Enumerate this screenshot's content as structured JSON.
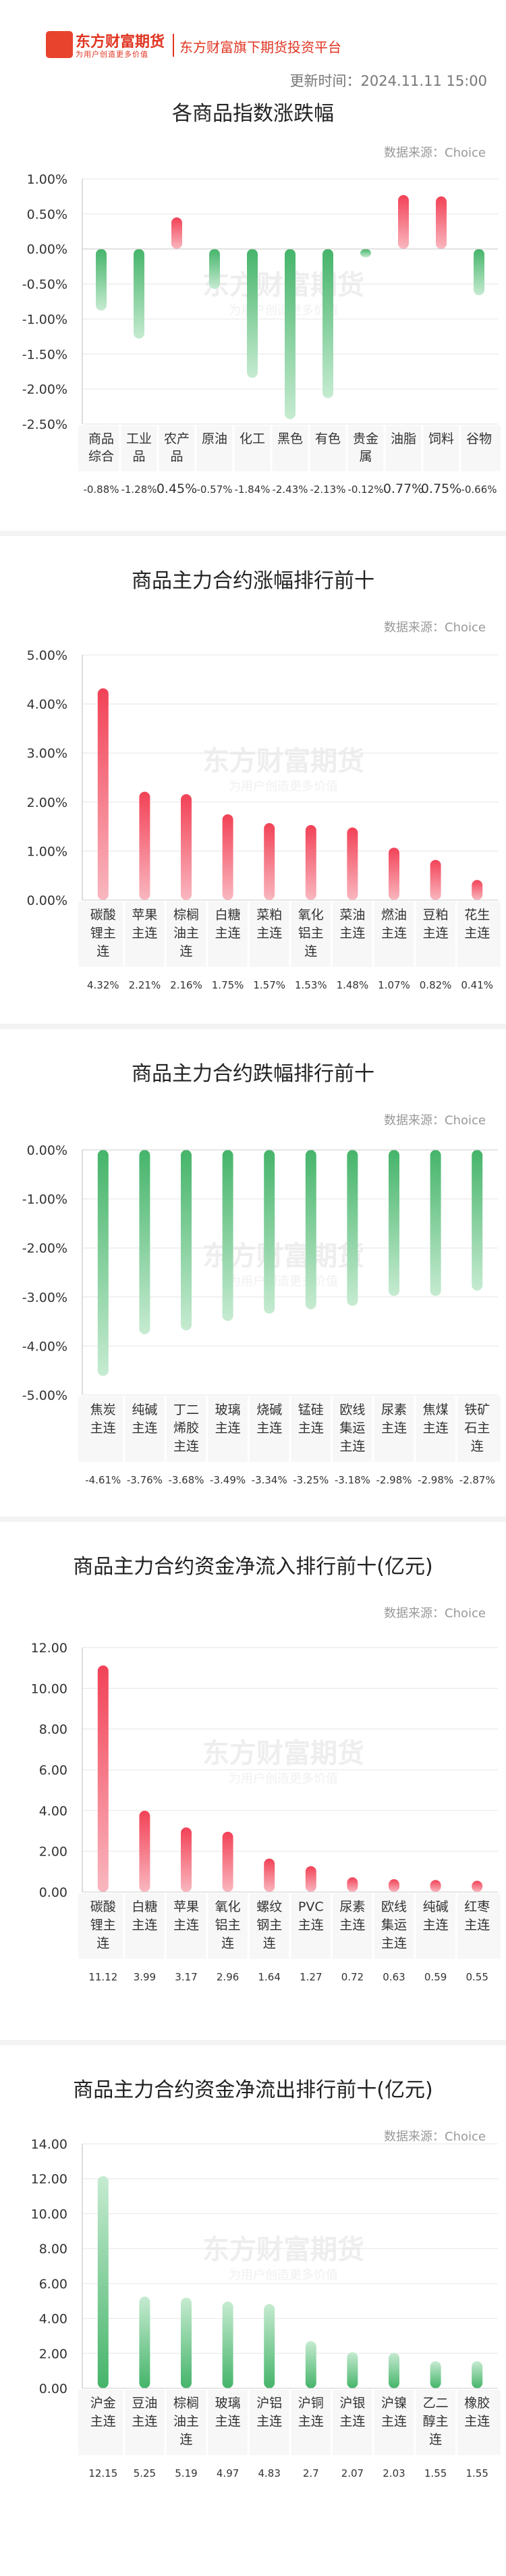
{
  "header": {
    "brand_name": "东方财富期货",
    "brand_slogan": "为用户创造更多价值",
    "platform_name": "东方财富旗下期货投资平台",
    "update_time": "更新时间：2024.11.11 15:00"
  },
  "watermark": {
    "main": "东方财富期货",
    "sub": "为用户创造更多价值"
  },
  "colors": {
    "up": "#f0455a",
    "down": "#4fb873",
    "zero_line": "#bbbbbb",
    "grid": "#e6e6e6"
  },
  "chart_data": [
    {
      "type": "bar",
      "title": "各商品指数涨跌幅",
      "source": "数据来源：Choice",
      "categories": [
        "商品综合",
        "工业品",
        "农产品",
        "原油",
        "化工",
        "黑色",
        "有色",
        "贵金属",
        "油脂",
        "饲料",
        "谷物"
      ],
      "values": [
        -0.88,
        -1.28,
        0.45,
        -0.57,
        -1.84,
        -2.43,
        -2.13,
        -0.12,
        0.77,
        0.75,
        -0.66
      ],
      "value_labels": [
        "-0.88%",
        "-1.28%",
        "0.45%",
        "-0.57%",
        "-1.84%",
        "-2.43%",
        "-2.13%",
        "-0.12%",
        "0.77%",
        "0.75%",
        "-0.66%"
      ],
      "yticks": [
        "1.00%",
        "0.50%",
        "0.00%",
        "-0.50%",
        "-1.00%",
        "-1.50%",
        "-2.00%",
        "-2.50%"
      ],
      "ylim": [
        -2.5,
        1.0
      ]
    },
    {
      "type": "bar",
      "title": "商品主力合约涨幅排行前十",
      "source": "数据来源：Choice",
      "categories": [
        "碳酸锂主连",
        "苹果主连",
        "棕榈油主连",
        "白糖主连",
        "菜粕主连",
        "氧化铝主连",
        "菜油主连",
        "燃油主连",
        "豆粕主连",
        "花生主连"
      ],
      "values": [
        4.32,
        2.21,
        2.16,
        1.75,
        1.57,
        1.53,
        1.48,
        1.07,
        0.82,
        0.41
      ],
      "value_labels": [
        "4.32%",
        "2.21%",
        "2.16%",
        "1.75%",
        "1.57%",
        "1.53%",
        "1.48%",
        "1.07%",
        "0.82%",
        "0.41%"
      ],
      "yticks": [
        "5.00%",
        "4.00%",
        "3.00%",
        "2.00%",
        "1.00%",
        "0.00%"
      ],
      "ylim": [
        0,
        5
      ]
    },
    {
      "type": "bar",
      "title": "商品主力合约跌幅排行前十",
      "source": "数据来源：Choice",
      "categories": [
        "焦炭主连",
        "纯碱主连",
        "丁二烯胶主连",
        "玻璃主连",
        "烧碱主连",
        "锰硅主连",
        "欧线集运主连",
        "尿素主连",
        "焦煤主连",
        "铁矿石主连"
      ],
      "values": [
        -4.61,
        -3.76,
        -3.68,
        -3.49,
        -3.34,
        -3.25,
        -3.18,
        -2.98,
        -2.98,
        -2.87
      ],
      "value_labels": [
        "-4.61%",
        "-3.76%",
        "-3.68%",
        "-3.49%",
        "-3.34%",
        "-3.25%",
        "-3.18%",
        "-2.98%",
        "-2.98%",
        "-2.87%"
      ],
      "yticks": [
        "0.00%",
        "-1.00%",
        "-2.00%",
        "-3.00%",
        "-4.00%",
        "-5.00%"
      ],
      "ylim": [
        -5,
        0
      ]
    },
    {
      "type": "bar",
      "title": "商品主力合约资金净流入排行前十(亿元)",
      "source": "数据来源：Choice",
      "categories": [
        "碳酸锂主连",
        "白糖主连",
        "苹果主连",
        "氧化铝主连",
        "螺纹钢主连",
        "PVC主连",
        "尿素主连",
        "欧线集运主连",
        "纯碱主连",
        "红枣主连"
      ],
      "values": [
        11.12,
        3.99,
        3.17,
        2.96,
        1.64,
        1.27,
        0.72,
        0.63,
        0.59,
        0.55
      ],
      "value_labels": [
        "11.12",
        "3.99",
        "3.17",
        "2.96",
        "1.64",
        "1.27",
        "0.72",
        "0.63",
        "0.59",
        "0.55"
      ],
      "yticks": [
        "12.00",
        "10.00",
        "8.00",
        "6.00",
        "4.00",
        "2.00",
        "0.00"
      ],
      "ylim": [
        0,
        12
      ]
    },
    {
      "type": "bar",
      "title": "商品主力合约资金净流出排行前十(亿元)",
      "source": "数据来源：Choice",
      "categories": [
        "沪金主连",
        "豆油主连",
        "棕榈油主连",
        "玻璃主连",
        "沪铝主连",
        "沪铜主连",
        "沪银主连",
        "沪镍主连",
        "乙二醇主连",
        "橡胶主连"
      ],
      "values": [
        12.15,
        5.25,
        5.19,
        4.97,
        4.83,
        2.7,
        2.07,
        2.03,
        1.55,
        1.55
      ],
      "value_labels": [
        "12.15",
        "5.25",
        "5.19",
        "4.97",
        "4.83",
        "2.7",
        "2.07",
        "2.03",
        "1.55",
        "1.55"
      ],
      "yticks": [
        "14.00",
        "12.00",
        "10.00",
        "8.00",
        "6.00",
        "4.00",
        "2.00",
        "0.00"
      ],
      "ylim": [
        0,
        14
      ]
    }
  ]
}
